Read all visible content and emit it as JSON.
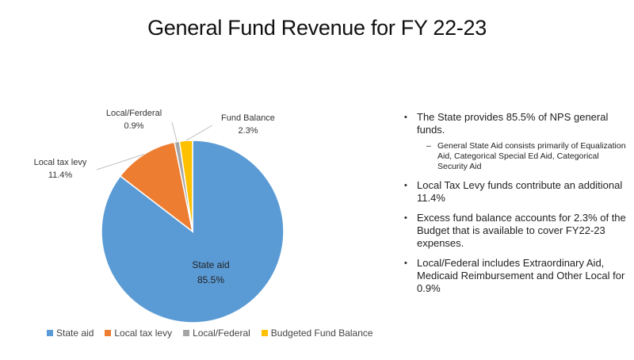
{
  "chart_data": {
    "type": "pie",
    "title": "General Fund Revenue for FY 22-23",
    "slices": [
      {
        "name": "State aid",
        "value": 85.5,
        "label": "State aid",
        "percent_label": "85.5%",
        "color": "#5B9BD5"
      },
      {
        "name": "Local tax levy",
        "value": 11.4,
        "label": "Local tax levy",
        "percent_label": "11.4%",
        "color": "#ED7D31"
      },
      {
        "name": "Local/Federal",
        "value": 0.9,
        "label": "Local/Ferderal",
        "percent_label": "0.9%",
        "color": "#A5A5A5"
      },
      {
        "name": "Budgeted Fund Balance",
        "value": 2.3,
        "label": "Fund Balance",
        "percent_label": "2.3%",
        "color": "#FFC000"
      }
    ],
    "legend": {
      "placement": "bottom",
      "entries": [
        "State aid",
        "Local tax levy",
        "Local/Federal",
        "Budgeted Fund Balance"
      ]
    }
  },
  "bullets": [
    {
      "text": "The State provides 85.5% of NPS general funds.",
      "sub": "General State Aid consists primarily of Equalization Aid, Categorical Special Ed Aid, Categorical Security Aid"
    },
    {
      "text": "Local Tax Levy funds contribute an additional 11.4%"
    },
    {
      "text": "Excess fund balance accounts for 2.3% of the Budget that is available to cover FY22-23 expenses."
    },
    {
      "text": "Local/Federal includes Extraordinary Aid, Medicaid Reimbursement and Other Local for 0.9%"
    }
  ]
}
